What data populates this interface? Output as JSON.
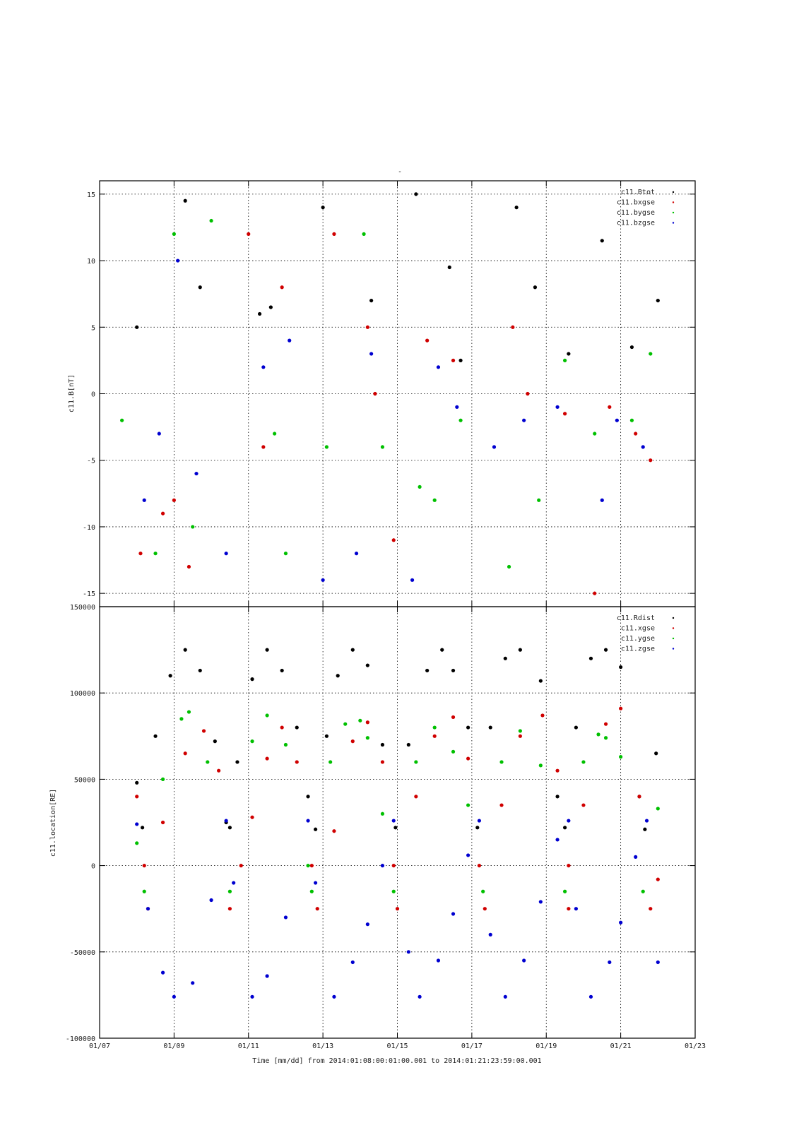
{
  "title": "-",
  "xlabel": "Time [mm/dd]  from 2014:01:08:00:01:00.001  to  2014:01:21:23:59:00.001",
  "colors": {
    "black": "#000000",
    "red": "#d00000",
    "green": "#00c000",
    "blue": "#0000d0"
  },
  "chart_data": [
    {
      "type": "scatter",
      "ylabel": "c11.B[nT]",
      "ylim": [
        -16,
        16
      ],
      "yticks": [
        "15",
        "10",
        "5",
        "0",
        "-5",
        "-10",
        "-15"
      ],
      "ytick_values": [
        15,
        10,
        5,
        0,
        -5,
        -10,
        -15
      ],
      "xlim": [
        "01/07",
        "01/23"
      ],
      "grid": true,
      "legend_position": "top-right",
      "series": [
        {
          "name": "c11.Btot",
          "color": "#000000",
          "values": [
            [
              8.0,
              5.0
            ],
            [
              9.3,
              14.5
            ],
            [
              9.7,
              8.0
            ],
            [
              11.3,
              6.0
            ],
            [
              11.6,
              6.5
            ],
            [
              13.0,
              14.0
            ],
            [
              14.3,
              7.0
            ],
            [
              15.5,
              15.0
            ],
            [
              16.4,
              9.5
            ],
            [
              16.7,
              2.5
            ],
            [
              18.2,
              14.0
            ],
            [
              18.7,
              8.0
            ],
            [
              19.6,
              3.0
            ],
            [
              20.5,
              11.5
            ],
            [
              21.3,
              3.5
            ],
            [
              22.0,
              7.0
            ]
          ]
        },
        {
          "name": "c11.bxgse",
          "color": "#d00000",
          "values": [
            [
              8.1,
              -12.0
            ],
            [
              8.7,
              -9.0
            ],
            [
              9.0,
              -8.0
            ],
            [
              9.4,
              -13.0
            ],
            [
              11.0,
              12.0
            ],
            [
              11.4,
              -4.0
            ],
            [
              11.9,
              8.0
            ],
            [
              13.3,
              12.0
            ],
            [
              14.2,
              5.0
            ],
            [
              14.4,
              0.0
            ],
            [
              14.9,
              -11.0
            ],
            [
              15.8,
              4.0
            ],
            [
              16.5,
              2.5
            ],
            [
              18.1,
              5.0
            ],
            [
              18.5,
              0.0
            ],
            [
              19.5,
              -1.5
            ],
            [
              20.3,
              -15.0
            ],
            [
              20.7,
              -1.0
            ],
            [
              21.4,
              -3.0
            ],
            [
              21.8,
              -5.0
            ]
          ]
        },
        {
          "name": "c11.bygse",
          "color": "#00c000",
          "values": [
            [
              7.6,
              -2.0
            ],
            [
              8.5,
              -12.0
            ],
            [
              9.0,
              12.0
            ],
            [
              9.5,
              -10.0
            ],
            [
              10.0,
              13.0
            ],
            [
              11.7,
              -3.0
            ],
            [
              12.0,
              -12.0
            ],
            [
              13.1,
              -4.0
            ],
            [
              14.1,
              12.0
            ],
            [
              14.6,
              -4.0
            ],
            [
              15.6,
              -7.0
            ],
            [
              16.0,
              -8.0
            ],
            [
              16.7,
              -2.0
            ],
            [
              18.0,
              -13.0
            ],
            [
              18.8,
              -8.0
            ],
            [
              19.5,
              2.5
            ],
            [
              20.3,
              -3.0
            ],
            [
              21.3,
              -2.0
            ],
            [
              21.8,
              3.0
            ]
          ]
        },
        {
          "name": "c11.bzgse",
          "color": "#0000d0",
          "values": [
            [
              8.2,
              -8.0
            ],
            [
              8.6,
              -3.0
            ],
            [
              9.1,
              10.0
            ],
            [
              9.6,
              -6.0
            ],
            [
              10.4,
              -12.0
            ],
            [
              11.4,
              2.0
            ],
            [
              12.1,
              4.0
            ],
            [
              13.0,
              -14.0
            ],
            [
              13.9,
              -12.0
            ],
            [
              14.3,
              3.0
            ],
            [
              15.4,
              -14.0
            ],
            [
              16.1,
              2.0
            ],
            [
              16.6,
              -1.0
            ],
            [
              17.6,
              -4.0
            ],
            [
              18.4,
              -2.0
            ],
            [
              19.3,
              -1.0
            ],
            [
              20.5,
              -8.0
            ],
            [
              20.9,
              -2.0
            ],
            [
              21.6,
              -4.0
            ]
          ]
        }
      ]
    },
    {
      "type": "scatter",
      "ylabel": "c11.location[RE]",
      "ylim": [
        -100000,
        150000
      ],
      "yticks": [
        "150000",
        "100000",
        "50000",
        "0",
        "-50000",
        "-100000"
      ],
      "ytick_values": [
        150000,
        100000,
        50000,
        0,
        -50000,
        -100000
      ],
      "xticks": [
        "01/07",
        "01/09",
        "01/11",
        "01/13",
        "01/15",
        "01/17",
        "01/19",
        "01/21",
        "01/23"
      ],
      "xtick_values": [
        7,
        9,
        11,
        13,
        15,
        17,
        19,
        21,
        23
      ],
      "xlim": [
        "01/07",
        "01/23"
      ],
      "grid": true,
      "legend_position": "top-right",
      "series": [
        {
          "name": "c11.Rdist",
          "color": "#000000",
          "values": [
            [
              8.0,
              48000
            ],
            [
              8.15,
              22000
            ],
            [
              8.5,
              75000
            ],
            [
              8.9,
              110000
            ],
            [
              9.3,
              125000
            ],
            [
              9.7,
              113000
            ],
            [
              10.1,
              72000
            ],
            [
              10.4,
              25000
            ],
            [
              10.5,
              22000
            ],
            [
              10.7,
              60000
            ],
            [
              11.1,
              108000
            ],
            [
              11.5,
              125000
            ],
            [
              11.9,
              113000
            ],
            [
              12.3,
              80000
            ],
            [
              12.6,
              40000
            ],
            [
              12.8,
              21000
            ],
            [
              13.1,
              75000
            ],
            [
              13.4,
              110000
            ],
            [
              13.8,
              125000
            ],
            [
              14.2,
              116000
            ],
            [
              14.6,
              70000
            ],
            [
              14.95,
              22000
            ],
            [
              15.3,
              70000
            ],
            [
              15.8,
              113000
            ],
            [
              16.2,
              125000
            ],
            [
              16.5,
              113000
            ],
            [
              16.9,
              80000
            ],
            [
              17.15,
              22000
            ],
            [
              17.5,
              80000
            ],
            [
              17.9,
              120000
            ],
            [
              18.3,
              125000
            ],
            [
              18.85,
              107000
            ],
            [
              19.3,
              40000
            ],
            [
              19.5,
              22000
            ],
            [
              19.8,
              80000
            ],
            [
              20.2,
              120000
            ],
            [
              20.6,
              125000
            ],
            [
              21.0,
              115000
            ],
            [
              21.5,
              40000
            ],
            [
              21.65,
              21000
            ],
            [
              21.95,
              65000
            ]
          ]
        },
        {
          "name": "c11.xgse",
          "color": "#d00000",
          "values": [
            [
              8.0,
              40000
            ],
            [
              8.2,
              0
            ],
            [
              8.3,
              -25000
            ],
            [
              8.7,
              25000
            ],
            [
              9.3,
              65000
            ],
            [
              9.8,
              78000
            ],
            [
              10.2,
              55000
            ],
            [
              10.5,
              -25000
            ],
            [
              10.8,
              0
            ],
            [
              11.1,
              28000
            ],
            [
              11.5,
              62000
            ],
            [
              11.9,
              80000
            ],
            [
              12.3,
              60000
            ],
            [
              12.7,
              0
            ],
            [
              12.85,
              -25000
            ],
            [
              13.3,
              20000
            ],
            [
              13.8,
              72000
            ],
            [
              14.2,
              83000
            ],
            [
              14.6,
              60000
            ],
            [
              14.9,
              0
            ],
            [
              15.0,
              -25000
            ],
            [
              15.5,
              40000
            ],
            [
              16.0,
              75000
            ],
            [
              16.5,
              86000
            ],
            [
              16.9,
              62000
            ],
            [
              17.2,
              0
            ],
            [
              17.35,
              -25000
            ],
            [
              17.8,
              35000
            ],
            [
              18.3,
              75000
            ],
            [
              18.9,
              87000
            ],
            [
              19.3,
              55000
            ],
            [
              19.6,
              0
            ],
            [
              19.6,
              -25000
            ],
            [
              20.0,
              35000
            ],
            [
              20.6,
              82000
            ],
            [
              21.0,
              91000
            ],
            [
              21.5,
              40000
            ],
            [
              21.8,
              -25000
            ],
            [
              22.0,
              -8000
            ]
          ]
        },
        {
          "name": "c11.ygse",
          "color": "#00c000",
          "values": [
            [
              8.0,
              13000
            ],
            [
              8.2,
              -15000
            ],
            [
              8.7,
              50000
            ],
            [
              9.2,
              85000
            ],
            [
              9.4,
              89000
            ],
            [
              9.9,
              60000
            ],
            [
              10.5,
              -15000
            ],
            [
              11.1,
              72000
            ],
            [
              11.5,
              87000
            ],
            [
              12.0,
              70000
            ],
            [
              12.6,
              0
            ],
            [
              12.7,
              -15000
            ],
            [
              13.2,
              60000
            ],
            [
              13.6,
              82000
            ],
            [
              14.0,
              84000
            ],
            [
              14.2,
              74000
            ],
            [
              14.6,
              30000
            ],
            [
              14.9,
              -15000
            ],
            [
              15.5,
              60000
            ],
            [
              16.0,
              80000
            ],
            [
              16.5,
              66000
            ],
            [
              16.9,
              35000
            ],
            [
              17.3,
              -15000
            ],
            [
              17.8,
              60000
            ],
            [
              18.3,
              78000
            ],
            [
              18.85,
              58000
            ],
            [
              19.5,
              -15000
            ],
            [
              20.0,
              60000
            ],
            [
              20.4,
              76000
            ],
            [
              20.6,
              74000
            ],
            [
              21.0,
              63000
            ],
            [
              21.6,
              -15000
            ],
            [
              22.0,
              33000
            ]
          ]
        },
        {
          "name": "c11.zgse",
          "color": "#0000d0",
          "values": [
            [
              8.0,
              24000
            ],
            [
              8.3,
              -25000
            ],
            [
              8.7,
              -62000
            ],
            [
              9.0,
              -76000
            ],
            [
              9.5,
              -68000
            ],
            [
              10.0,
              -20000
            ],
            [
              10.4,
              26000
            ],
            [
              10.6,
              -10000
            ],
            [
              11.1,
              -76000
            ],
            [
              11.5,
              -64000
            ],
            [
              12.0,
              -30000
            ],
            [
              12.6,
              26000
            ],
            [
              12.8,
              -10000
            ],
            [
              13.3,
              -76000
            ],
            [
              13.8,
              -56000
            ],
            [
              14.2,
              -34000
            ],
            [
              14.6,
              0
            ],
            [
              14.9,
              26000
            ],
            [
              15.3,
              -50000
            ],
            [
              15.6,
              -76000
            ],
            [
              16.1,
              -55000
            ],
            [
              16.5,
              -28000
            ],
            [
              16.9,
              6000
            ],
            [
              17.2,
              26000
            ],
            [
              17.5,
              -40000
            ],
            [
              17.9,
              -76000
            ],
            [
              18.4,
              -55000
            ],
            [
              18.85,
              -21000
            ],
            [
              19.3,
              15000
            ],
            [
              19.6,
              26000
            ],
            [
              19.8,
              -25000
            ],
            [
              20.2,
              -76000
            ],
            [
              20.7,
              -56000
            ],
            [
              21.0,
              -33000
            ],
            [
              21.4,
              5000
            ],
            [
              21.7,
              26000
            ],
            [
              22.0,
              -56000
            ]
          ]
        }
      ]
    }
  ]
}
